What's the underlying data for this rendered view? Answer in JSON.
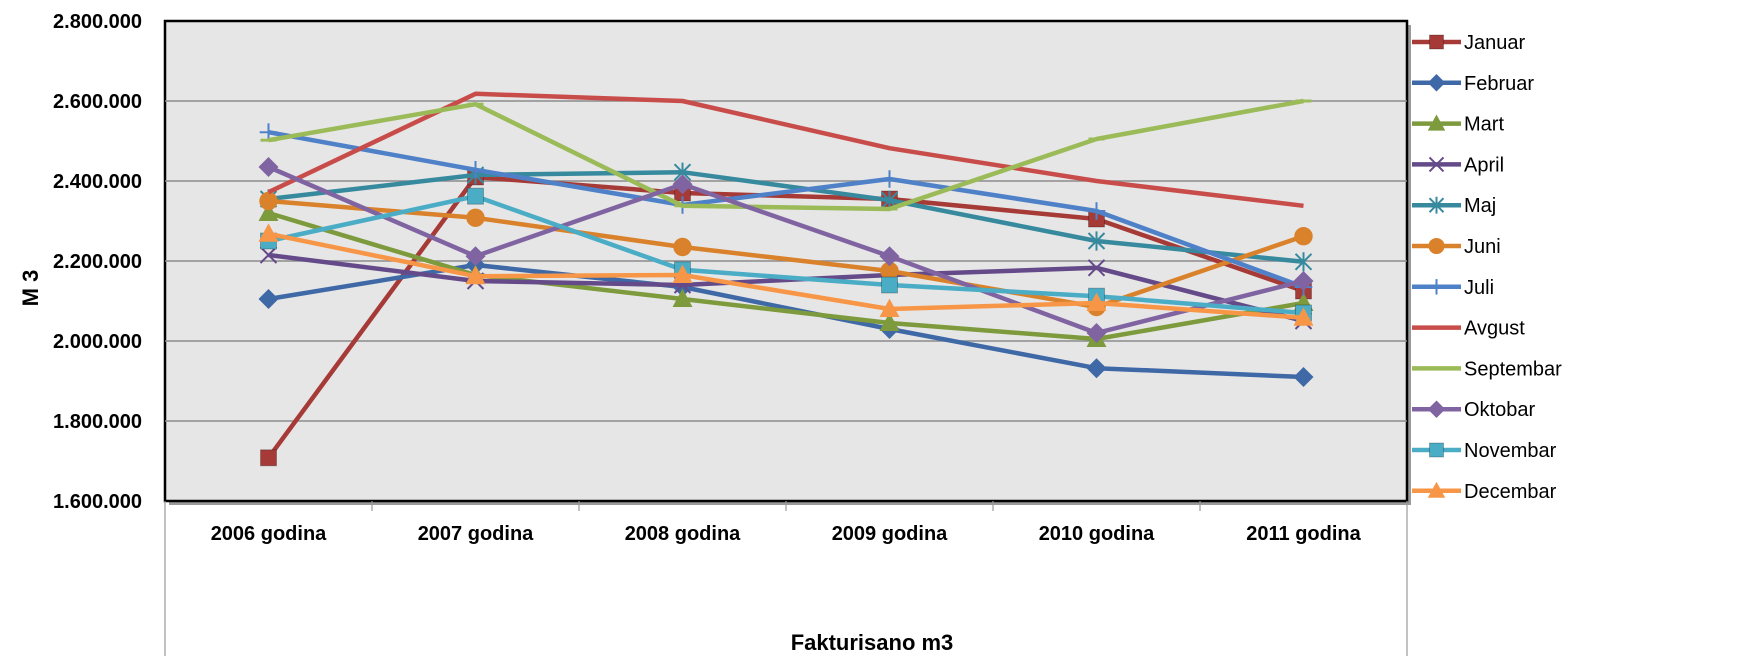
{
  "chart_data": {
    "type": "line",
    "title": "",
    "xlabel": "Fakturisano m3",
    "ylabel": "M 3",
    "ylim": [
      1600000,
      2800000
    ],
    "yticks": [
      1600000,
      1800000,
      2000000,
      2200000,
      2400000,
      2600000,
      2800000
    ],
    "ytick_labels": [
      "1.600.000",
      "1.800.000",
      "2.000.000",
      "2.200.000",
      "2.400.000",
      "2.600.000",
      "2.800.000"
    ],
    "grid": true,
    "legend_position": "right",
    "categories": [
      "2006 godina",
      "2007 godina",
      "2008 godina",
      "2009 godina",
      "2010 godina",
      "2011 godina"
    ],
    "series": [
      {
        "name": "Januar",
        "color": "#A63A37",
        "marker": "square",
        "values": [
          1708000,
          2410000,
          2370000,
          2355000,
          2305000,
          2125000
        ]
      },
      {
        "name": "Februar",
        "color": "#3E68A6",
        "marker": "diamond",
        "values": [
          2105000,
          2190000,
          2135000,
          2030000,
          1932000,
          1910000
        ]
      },
      {
        "name": "Mart",
        "color": "#7D9A3C",
        "marker": "triangle",
        "values": [
          2320000,
          2165000,
          2105000,
          2045000,
          2005000,
          2095000
        ]
      },
      {
        "name": "April",
        "color": "#654A8A",
        "marker": "x",
        "values": [
          2215000,
          2150000,
          2140000,
          2165000,
          2183000,
          2050000
        ]
      },
      {
        "name": "Maj",
        "color": "#378A9E",
        "marker": "star",
        "values": [
          2355000,
          2415000,
          2422000,
          2352000,
          2250000,
          2198000
        ]
      },
      {
        "name": "Juni",
        "color": "#D9822B",
        "marker": "circle",
        "values": [
          2350000,
          2308000,
          2235000,
          2175000,
          2085000,
          2262000
        ]
      },
      {
        "name": "Juli",
        "color": "#4F81C8",
        "marker": "plus",
        "values": [
          2522000,
          2428000,
          2340000,
          2405000,
          2325000,
          2135000
        ]
      },
      {
        "name": "Avgust",
        "color": "#C84D4A",
        "marker": "none",
        "values": [
          2372000,
          2618000,
          2600000,
          2482000,
          2400000,
          2338000
        ]
      },
      {
        "name": "Septembar",
        "color": "#9BBB59",
        "marker": "dash",
        "values": [
          2502000,
          2592000,
          2338000,
          2330000,
          2505000,
          2600000
        ]
      },
      {
        "name": "Oktobar",
        "color": "#8064A2",
        "marker": "diamond",
        "values": [
          2435000,
          2212000,
          2392000,
          2212000,
          2020000,
          2150000
        ]
      },
      {
        "name": "Novembar",
        "color": "#4BACC6",
        "marker": "square",
        "values": [
          2250000,
          2362000,
          2178000,
          2140000,
          2112000,
          2070000
        ]
      },
      {
        "name": "Decembar",
        "color": "#F79646",
        "marker": "triangle",
        "values": [
          2268000,
          2162000,
          2165000,
          2080000,
          2095000,
          2058000
        ]
      }
    ]
  }
}
